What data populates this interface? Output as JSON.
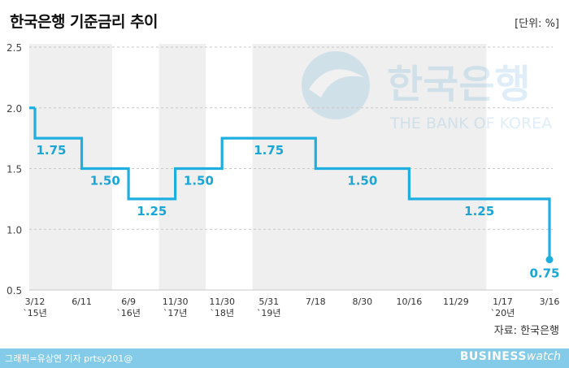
{
  "header": {
    "title": "한국은행 기준금리 추이",
    "unit": "[단위: %]"
  },
  "source": "자료: 한국은행",
  "watermark": {
    "name": "한국은행",
    "subtitle": "THE BANK OF KOREA"
  },
  "footer": {
    "credit": "그래픽=유상연 기자 prtsy201@",
    "brand_main": "BUSINESS",
    "brand_sub": "watch"
  },
  "colors": {
    "line": "#1eaee0",
    "label": "#1ba6d6",
    "band": "#efefef",
    "grid": "#c8c8c8",
    "footer": "#83cbe8"
  },
  "chart_data": {
    "type": "line",
    "step": true,
    "title": "한국은행 기준금리 추이",
    "ylim": [
      0.5,
      2.5
    ],
    "yticks": [
      "0.5",
      "1.0",
      "1.5",
      "2.0",
      "2.5"
    ],
    "grid": true,
    "x_ticks": [
      {
        "date": "2015-03-12",
        "line1": "3/12",
        "line2": "`15년"
      },
      {
        "date": "2015-06-11",
        "line1": "6/11",
        "line2": ""
      },
      {
        "date": "2016-06-09",
        "line1": "6/9",
        "line2": "`16년"
      },
      {
        "date": "2017-11-30",
        "line1": "11/30",
        "line2": "`17년"
      },
      {
        "date": "2018-11-30",
        "line1": "11/30",
        "line2": "`18년"
      },
      {
        "date": "2019-05-31",
        "line1": "5/31",
        "line2": "`19년"
      },
      {
        "date": "2019-07-18",
        "line1": "7/18",
        "line2": ""
      },
      {
        "date": "2019-08-30",
        "line1": "8/30",
        "line2": ""
      },
      {
        "date": "2019-10-16",
        "line1": "10/16",
        "line2": ""
      },
      {
        "date": "2019-11-29",
        "line1": "11/29",
        "line2": ""
      },
      {
        "date": "2020-01-17",
        "line1": "1/17",
        "line2": "`20년"
      },
      {
        "date": "2020-03-16",
        "line1": "3/16",
        "line2": ""
      }
    ],
    "series": [
      {
        "points": [
          {
            "x": "2015-03-12",
            "y": 2.0
          },
          {
            "x": "2015-03-12",
            "y": 1.75
          },
          {
            "x": "2015-06-11",
            "y": 1.75
          },
          {
            "x": "2015-06-11",
            "y": 1.5
          },
          {
            "x": "2016-06-09",
            "y": 1.5
          },
          {
            "x": "2016-06-09",
            "y": 1.25
          },
          {
            "x": "2017-11-30",
            "y": 1.25
          },
          {
            "x": "2017-11-30",
            "y": 1.5
          },
          {
            "x": "2018-11-30",
            "y": 1.5
          },
          {
            "x": "2018-11-30",
            "y": 1.75
          },
          {
            "x": "2019-07-18",
            "y": 1.75
          },
          {
            "x": "2019-07-18",
            "y": 1.5
          },
          {
            "x": "2019-10-16",
            "y": 1.5
          },
          {
            "x": "2019-10-16",
            "y": 1.25
          },
          {
            "x": "2020-03-16",
            "y": 1.25
          },
          {
            "x": "2020-03-16",
            "y": 0.75
          }
        ]
      }
    ],
    "data_labels": [
      {
        "text": "1.75",
        "from": "2015-03-12",
        "to": "2015-06-11",
        "y": 1.75
      },
      {
        "text": "1.50",
        "from": "2015-06-11",
        "to": "2016-06-09",
        "y": 1.5
      },
      {
        "text": "1.25",
        "from": "2016-06-09",
        "to": "2017-11-30",
        "y": 1.25
      },
      {
        "text": "1.50",
        "from": "2017-11-30",
        "to": "2018-11-30",
        "y": 1.5
      },
      {
        "text": "1.75",
        "from": "2018-11-30",
        "to": "2019-07-18",
        "y": 1.75
      },
      {
        "text": "1.50",
        "from": "2019-07-18",
        "to": "2019-10-16",
        "y": 1.5
      },
      {
        "text": "1.25",
        "from": "2019-10-16",
        "to": "2020-03-16",
        "y": 1.25
      },
      {
        "text": "0.75",
        "from": "2020-03-16",
        "to": "2020-03-16",
        "y": 0.75
      }
    ]
  }
}
